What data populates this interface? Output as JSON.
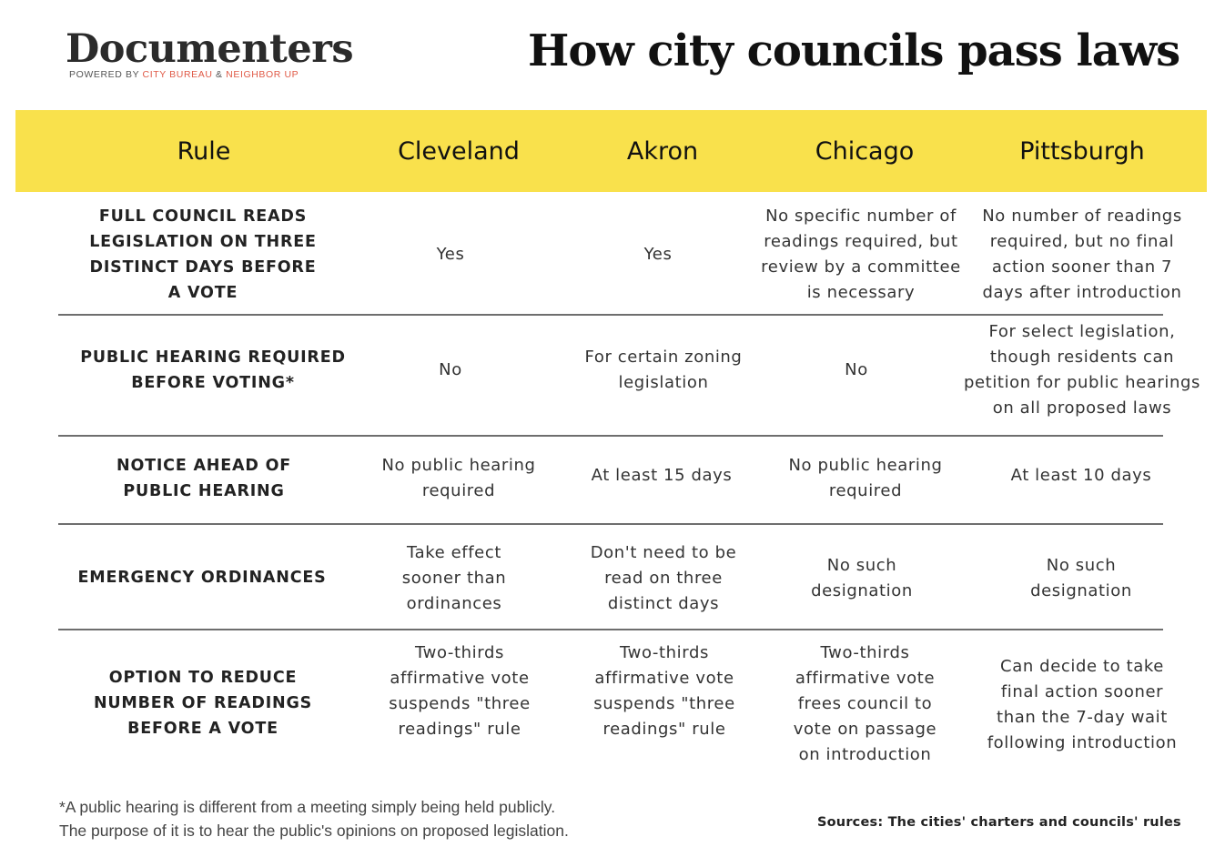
{
  "logo": {
    "wordmark": "Documenters",
    "tagline_prefix": "POWERED BY ",
    "tagline_org1": "CITY BUREAU",
    "tagline_amp": " & ",
    "tagline_org2": "NEIGHBOR UP"
  },
  "title": "How city councils pass laws",
  "table": {
    "headers": [
      "Rule",
      "Cleveland",
      "Akron",
      "Chicago",
      "Pittsburgh"
    ],
    "rows": [
      {
        "rule": "FULL COUNCIL READS LEGISLATION ON THREE DISTINCT DAYS BEFORE A VOTE",
        "cleveland": "Yes",
        "akron": "Yes",
        "chicago": "No specific number of readings required, but review by a committee is necessary",
        "pittsburgh": "No number of readings required, but no final action sooner than 7 days after introduction"
      },
      {
        "rule": "PUBLIC HEARING REQUIRED BEFORE VOTING*",
        "cleveland": "No",
        "akron": "For certain zoning legislation",
        "chicago": "No",
        "pittsburgh": "For select legislation, though residents can petition for public hearings on all proposed laws"
      },
      {
        "rule": "NOTICE AHEAD OF PUBLIC HEARING",
        "cleveland": "No public hearing required",
        "akron": "At least 15 days",
        "chicago": "No public hearing required",
        "pittsburgh": "At least 10 days"
      },
      {
        "rule": "EMERGENCY ORDINANCES",
        "cleveland": "Take effect sooner than ordinances",
        "akron": "Don't need to be read on three distinct days",
        "chicago": "No such designation",
        "pittsburgh": "No such designation"
      },
      {
        "rule": "OPTION TO REDUCE NUMBER OF READINGS BEFORE A VOTE",
        "cleveland": "Two-thirds affirmative vote suspends \"three readings\" rule",
        "akron": "Two-thirds affirmative vote suspends \"three readings\" rule",
        "chicago": "Two-thirds affirmative vote frees council to vote on passage on introduction",
        "pittsburgh": "Can decide to take final action sooner than the 7-day wait following introduction"
      }
    ]
  },
  "footnote": {
    "line1": "*A public hearing is different from a meeting simply being held publicly.",
    "line2": "The purpose of it is to hear the public's opinions on proposed legislation."
  },
  "sources": "Sources: The cities' charters and councils' rules",
  "colors": {
    "header_band": "#f9e14c",
    "logo_accent": "#e05a47",
    "rule_lines": "#6e6e6e"
  }
}
